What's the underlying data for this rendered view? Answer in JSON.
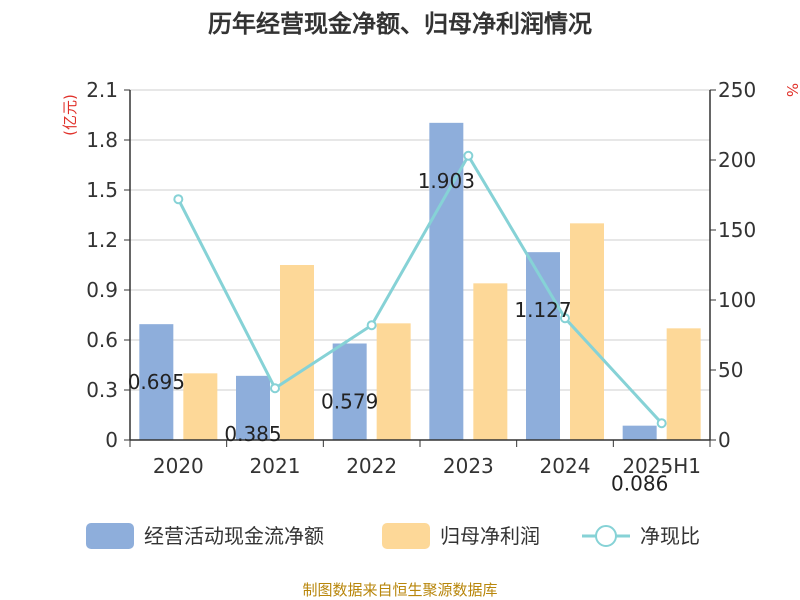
{
  "title": "历年经营现金净额、归母净利润情况",
  "source": "制图数据来自恒生聚源数据库",
  "chart_data": {
    "type": "bar",
    "title": "历年经营现金净额、归母净利润情况",
    "categories": [
      "2020",
      "2021",
      "2022",
      "2023",
      "2024",
      "2025H1"
    ],
    "y_left": {
      "unit": "(亿元)",
      "ylim": [
        0,
        2.1
      ],
      "ticks": [
        "0",
        "0.3",
        "0.6",
        "0.9",
        "1.2",
        "1.5",
        "1.8",
        "2.1"
      ]
    },
    "y_right": {
      "unit": "%",
      "ylim": [
        0,
        250
      ],
      "ticks": [
        "0",
        "50",
        "100",
        "150",
        "200",
        "250"
      ]
    },
    "grid": true,
    "legend_position": "bottom",
    "series": [
      {
        "name": "经营活动现金流净额",
        "type": "bar",
        "axis": "left",
        "color": "#8eaedb",
        "values": [
          0.695,
          0.385,
          0.579,
          1.903,
          1.127,
          0.086
        ],
        "labels": [
          "0.695",
          "0.385",
          "0.579",
          "1.903",
          "1.127",
          "0.086"
        ]
      },
      {
        "name": "归母净利润",
        "type": "bar",
        "axis": "left",
        "color": "#fdd898",
        "values": [
          0.4,
          1.05,
          0.7,
          0.94,
          1.3,
          0.67
        ]
      },
      {
        "name": "净现比",
        "type": "line",
        "axis": "right",
        "color": "#86d2d6",
        "values": [
          172,
          37,
          82,
          203,
          87,
          12
        ]
      }
    ]
  }
}
